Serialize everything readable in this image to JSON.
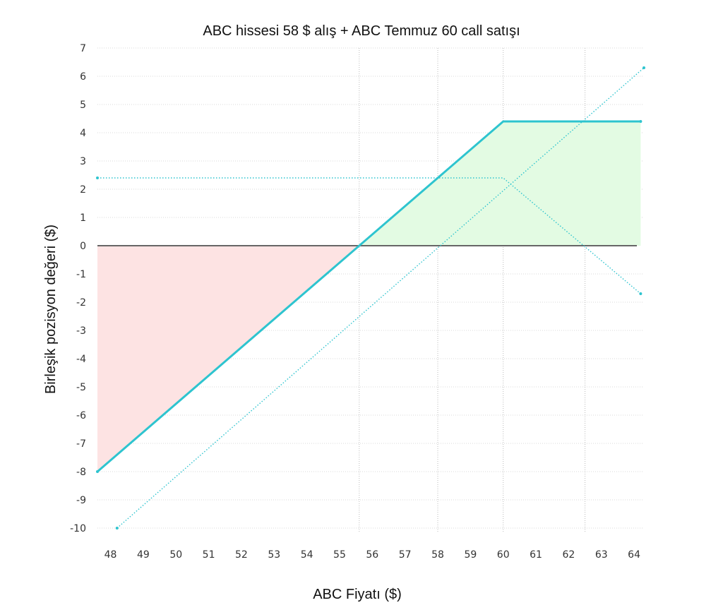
{
  "chart_data": {
    "type": "line",
    "title": "ABC hissesi 58 $ alış + ABC Temmuz 60 call satışı",
    "xlabel": "ABC Fiyatı ($)",
    "ylabel": "Birleşik pozisyon değeri ($)",
    "xlim": [
      47.6,
      64.3
    ],
    "ylim": [
      -10,
      7
    ],
    "x_ticks": [
      48,
      49,
      50,
      51,
      52,
      53,
      54,
      55,
      56,
      57,
      58,
      59,
      60,
      61,
      62,
      63,
      64
    ],
    "y_ticks": [
      7,
      6,
      5,
      4,
      3,
      2,
      1,
      0,
      -1,
      -2,
      -3,
      -4,
      -5,
      -6,
      -7,
      -8,
      -9,
      -10
    ],
    "grid": true,
    "reference_lines_x": [
      55.6,
      58,
      60,
      62.5
    ],
    "series": [
      {
        "style": "solid",
        "color": "#2ec4cf",
        "x": [
          47.6,
          60,
          64.2
        ],
        "y": [
          -8.0,
          4.4,
          4.4
        ]
      },
      {
        "style": "dotted",
        "color": "#2ec4cf",
        "x": [
          48.2,
          64.3
        ],
        "y": [
          -10.0,
          6.3
        ]
      },
      {
        "style": "dotted",
        "color": "#2ec4cf",
        "x": [
          47.6,
          60,
          64.2
        ],
        "y": [
          2.4,
          2.4,
          -1.7
        ]
      }
    ],
    "loss_fill": {
      "color": "#fde3e3",
      "x_range": [
        47.6,
        55.6
      ]
    },
    "profit_fill": {
      "color": "#e3fbe3",
      "x_range": [
        55.6,
        64.2
      ]
    },
    "zero_line_color": "#666666"
  }
}
